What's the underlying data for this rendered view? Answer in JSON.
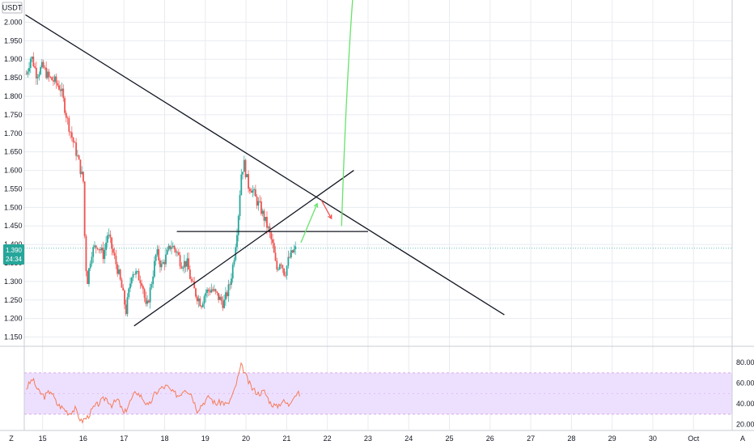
{
  "header": {
    "currency_label": "USDT"
  },
  "corner": {
    "left_button": "Z",
    "right_button": "A"
  },
  "price_badge": {
    "price": "1.390",
    "countdown": "24:34"
  },
  "colors": {
    "up": "#26a69a",
    "down": "#ef5350",
    "grid": "#e8ebf0",
    "trendline": "#131722",
    "rsi_line": "#f57c5a",
    "rsi_band": "#ede0ff",
    "rsi_bound": "#d9a6e8",
    "arrow_up": "#66e36a",
    "arrow_down": "#ef5350",
    "badge": "#26a69a"
  },
  "chart_data": [
    {
      "type": "candlestick",
      "ylim": [
        1.125,
        2.06
      ],
      "yticks": [
        "2.000",
        "1.950",
        "1.900",
        "1.850",
        "1.800",
        "1.750",
        "1.700",
        "1.650",
        "1.600",
        "1.550",
        "1.500",
        "1.450",
        "1.400",
        "1.350",
        "1.300",
        "1.250",
        "1.200",
        "1.150"
      ],
      "xlim": [
        14.55,
        31.95
      ],
      "xticks": [
        {
          "x": 15,
          "label": "15"
        },
        {
          "x": 16,
          "label": "16"
        },
        {
          "x": 17,
          "label": "17"
        },
        {
          "x": 18,
          "label": "18"
        },
        {
          "x": 19,
          "label": "19"
        },
        {
          "x": 20,
          "label": "20"
        },
        {
          "x": 21,
          "label": "21"
        },
        {
          "x": 22,
          "label": "22"
        },
        {
          "x": 23,
          "label": "23"
        },
        {
          "x": 24,
          "label": "24"
        },
        {
          "x": 25,
          "label": "25"
        },
        {
          "x": 26,
          "label": "26"
        },
        {
          "x": 27,
          "label": "27"
        },
        {
          "x": 28,
          "label": "28"
        },
        {
          "x": 29,
          "label": "29"
        },
        {
          "x": 30,
          "label": "30"
        },
        {
          "x": 31,
          "label": "Oct"
        }
      ],
      "close_path": [
        [
          14.6,
          1.86
        ],
        [
          14.72,
          1.91
        ],
        [
          14.85,
          1.86
        ],
        [
          15.0,
          1.88
        ],
        [
          15.15,
          1.85
        ],
        [
          15.3,
          1.84
        ],
        [
          15.45,
          1.82
        ],
        [
          15.6,
          1.74
        ],
        [
          15.72,
          1.69
        ],
        [
          15.85,
          1.64
        ],
        [
          16.0,
          1.57
        ],
        [
          16.05,
          1.36
        ],
        [
          16.1,
          1.3
        ],
        [
          16.2,
          1.38
        ],
        [
          16.35,
          1.4
        ],
        [
          16.5,
          1.37
        ],
        [
          16.6,
          1.43
        ],
        [
          16.75,
          1.37
        ],
        [
          16.85,
          1.33
        ],
        [
          16.95,
          1.28
        ],
        [
          17.05,
          1.22
        ],
        [
          17.2,
          1.33
        ],
        [
          17.3,
          1.32
        ],
        [
          17.45,
          1.3
        ],
        [
          17.55,
          1.22
        ],
        [
          17.65,
          1.28
        ],
        [
          17.8,
          1.38
        ],
        [
          17.92,
          1.34
        ],
        [
          18.05,
          1.37
        ],
        [
          18.15,
          1.4
        ],
        [
          18.3,
          1.38
        ],
        [
          18.4,
          1.35
        ],
        [
          18.55,
          1.35
        ],
        [
          18.65,
          1.3
        ],
        [
          18.75,
          1.27
        ],
        [
          18.9,
          1.24
        ],
        [
          19.0,
          1.27
        ],
        [
          19.15,
          1.28
        ],
        [
          19.3,
          1.26
        ],
        [
          19.45,
          1.24
        ],
        [
          19.6,
          1.29
        ],
        [
          19.7,
          1.36
        ],
        [
          19.8,
          1.46
        ],
        [
          19.88,
          1.59
        ],
        [
          19.95,
          1.62
        ],
        [
          20.05,
          1.56
        ],
        [
          20.15,
          1.55
        ],
        [
          20.25,
          1.52
        ],
        [
          20.35,
          1.5
        ],
        [
          20.45,
          1.47
        ],
        [
          20.55,
          1.44
        ],
        [
          20.65,
          1.4
        ],
        [
          20.75,
          1.33
        ],
        [
          20.85,
          1.36
        ],
        [
          20.95,
          1.32
        ],
        [
          21.05,
          1.36
        ],
        [
          21.15,
          1.38
        ],
        [
          21.25,
          1.39
        ]
      ],
      "trendlines": [
        {
          "from": [
            14.58,
            2.02
          ],
          "to": [
            26.35,
            1.21
          ]
        },
        {
          "from": [
            17.25,
            1.18
          ],
          "to": [
            22.65,
            1.6
          ]
        },
        {
          "from": [
            18.3,
            1.435
          ],
          "to": [
            23.0,
            1.435
          ]
        }
      ],
      "arrows": [
        {
          "color": "arrow_down",
          "from": [
            21.85,
            1.52
          ],
          "to": [
            22.1,
            1.47
          ]
        },
        {
          "color": "arrow_up",
          "from": [
            21.35,
            1.405
          ],
          "to": [
            21.75,
            1.51
          ]
        },
        {
          "color": "arrow_up",
          "from": [
            22.35,
            1.45
          ],
          "to": [
            22.62,
            2.06
          ],
          "ctrl": [
            22.45,
            1.8
          ]
        }
      ],
      "last_price": 1.39
    },
    {
      "type": "line",
      "title": "",
      "ylim": [
        15,
        95
      ],
      "yticks": [
        "80.00",
        "60.00",
        "40.00",
        "20.00"
      ],
      "band": [
        30,
        70
      ],
      "values_path": [
        [
          14.6,
          55
        ],
        [
          14.75,
          64
        ],
        [
          14.9,
          52
        ],
        [
          15.05,
          47
        ],
        [
          15.2,
          53
        ],
        [
          15.35,
          40
        ],
        [
          15.5,
          36
        ],
        [
          15.65,
          31
        ],
        [
          15.8,
          35
        ],
        [
          15.95,
          23
        ],
        [
          16.1,
          27
        ],
        [
          16.25,
          36
        ],
        [
          16.4,
          41
        ],
        [
          16.55,
          46
        ],
        [
          16.7,
          39
        ],
        [
          16.85,
          44
        ],
        [
          17.0,
          30
        ],
        [
          17.15,
          42
        ],
        [
          17.3,
          52
        ],
        [
          17.45,
          46
        ],
        [
          17.6,
          37
        ],
        [
          17.75,
          49
        ],
        [
          17.9,
          55
        ],
        [
          18.05,
          57
        ],
        [
          18.2,
          51
        ],
        [
          18.35,
          48
        ],
        [
          18.5,
          55
        ],
        [
          18.65,
          50
        ],
        [
          18.8,
          34
        ],
        [
          18.95,
          41
        ],
        [
          19.1,
          47
        ],
        [
          19.25,
          40
        ],
        [
          19.4,
          42
        ],
        [
          19.55,
          39
        ],
        [
          19.7,
          51
        ],
        [
          19.8,
          65
        ],
        [
          19.88,
          77
        ],
        [
          19.95,
          72
        ],
        [
          20.05,
          62
        ],
        [
          20.15,
          55
        ],
        [
          20.3,
          50
        ],
        [
          20.45,
          52
        ],
        [
          20.6,
          41
        ],
        [
          20.75,
          37
        ],
        [
          20.9,
          43
        ],
        [
          21.05,
          39
        ],
        [
          21.15,
          47
        ],
        [
          21.25,
          50
        ],
        [
          21.35,
          49
        ]
      ]
    }
  ]
}
